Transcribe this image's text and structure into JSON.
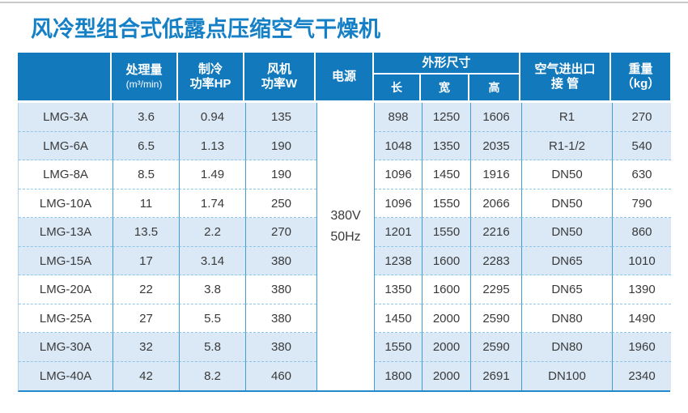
{
  "page_title": "风冷型组合式低露点压缩空气干燥机",
  "colors": {
    "header_bg": "#1279bd",
    "title_text": "#1580c6",
    "grid_line": "#429cd6",
    "row_shaded": "#dbe9f6",
    "bottom_border": "#2289cb"
  },
  "table": {
    "headers": {
      "model": "",
      "capacity_line1": "处理量",
      "capacity_line2": "(m³/min)",
      "cooling_line1": "制冷",
      "cooling_line2": "功率HP",
      "fan_line1": "风机",
      "fan_line2": "功率W",
      "power": "电源",
      "dimensions_group": "外形尺寸",
      "dim_length": "长",
      "dim_width": "宽",
      "dim_height": "高",
      "pipe_line1": "空气进出口",
      "pipe_line2": "接 管",
      "weight_line1": "重量",
      "weight_line2": "（kg）"
    },
    "power_supply": {
      "line1": "380V",
      "line2": "50Hz"
    },
    "rows": [
      {
        "model": "LMG-3A",
        "capacity": "3.6",
        "cooling_hp": "0.94",
        "fan_w": "135",
        "length": "898",
        "width": "1250",
        "height": "1606",
        "pipe": "R1",
        "weight": "270",
        "shaded": true
      },
      {
        "model": "LMG-6A",
        "capacity": "6.5",
        "cooling_hp": "1.13",
        "fan_w": "190",
        "length": "1048",
        "width": "1350",
        "height": "2035",
        "pipe": "R1-1/2",
        "weight": "540",
        "shaded": true
      },
      {
        "model": "LMG-8A",
        "capacity": "8.5",
        "cooling_hp": "1.49",
        "fan_w": "190",
        "length": "1096",
        "width": "1450",
        "height": "1916",
        "pipe": "DN50",
        "weight": "630",
        "shaded": false
      },
      {
        "model": "LMG-10A",
        "capacity": "11",
        "cooling_hp": "1.74",
        "fan_w": "250",
        "length": "1096",
        "width": "1550",
        "height": "2066",
        "pipe": "DN50",
        "weight": "790",
        "shaded": false
      },
      {
        "model": "LMG-13A",
        "capacity": "13.5",
        "cooling_hp": "2.2",
        "fan_w": "270",
        "length": "1201",
        "width": "1550",
        "height": "2216",
        "pipe": "DN50",
        "weight": "860",
        "shaded": true
      },
      {
        "model": "LMG-15A",
        "capacity": "17",
        "cooling_hp": "3.14",
        "fan_w": "380",
        "length": "1238",
        "width": "1600",
        "height": "2283",
        "pipe": "DN65",
        "weight": "1010",
        "shaded": true
      },
      {
        "model": "LMG-20A",
        "capacity": "22",
        "cooling_hp": "3.8",
        "fan_w": "380",
        "length": "1350",
        "width": "1600",
        "height": "2295",
        "pipe": "DN65",
        "weight": "1390",
        "shaded": false
      },
      {
        "model": "LMG-25A",
        "capacity": "27",
        "cooling_hp": "5.5",
        "fan_w": "380",
        "length": "1450",
        "width": "2000",
        "height": "2590",
        "pipe": "DN80",
        "weight": "1490",
        "shaded": false
      },
      {
        "model": "LMG-30A",
        "capacity": "32",
        "cooling_hp": "5.8",
        "fan_w": "380",
        "length": "1550",
        "width": "2000",
        "height": "2590",
        "pipe": "DN80",
        "weight": "1960",
        "shaded": true
      },
      {
        "model": "LMG-40A",
        "capacity": "42",
        "cooling_hp": "8.2",
        "fan_w": "460",
        "length": "1800",
        "width": "2000",
        "height": "2691",
        "pipe": "DN100",
        "weight": "2340",
        "shaded": true
      }
    ]
  }
}
